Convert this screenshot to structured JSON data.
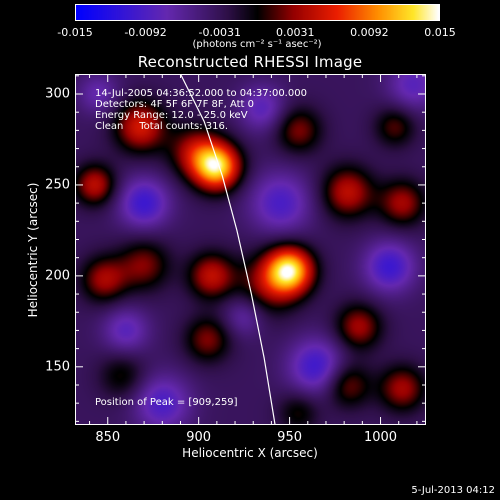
{
  "colorbar": {
    "ticks": [
      {
        "value": -0.015,
        "label": "-0.015"
      },
      {
        "value": -0.0092,
        "label": "-0.0092"
      },
      {
        "value": -0.0031,
        "label": "-0.0031"
      },
      {
        "value": 0.0031,
        "label": "0.0031"
      },
      {
        "value": 0.0092,
        "label": "0.0092"
      },
      {
        "value": 0.015,
        "label": "0.015"
      }
    ],
    "units": "(photons cm⁻² s⁻¹ asec⁻²)",
    "range": [
      -0.015,
      0.015
    ]
  },
  "chart_data": {
    "type": "heatmap",
    "title": "Reconstructed RHESSI Image",
    "xlabel": "Heliocentric X (arcsec)",
    "ylabel": "Heliocentric Y (arcsec)",
    "xlim": [
      832,
      1025
    ],
    "ylim": [
      118,
      311
    ],
    "xticks": [
      850,
      900,
      950,
      1000
    ],
    "yticks": [
      150,
      200,
      250,
      300
    ],
    "annotations": [
      "14-Jul-2005 04:36:52.000 to 04:37:00.000",
      "Detectors: 4F 5F 6F 7F 8F, Att 0",
      "Energy Range: 12.0 - 25.0 keV",
      "Clean     Total counts: 316."
    ],
    "peak_label": "Position of Peak = [909,259]",
    "peak": [
      909,
      259
    ],
    "value_range": [
      -0.015,
      0.015
    ],
    "sources": [
      {
        "x": 910,
        "y": 260,
        "amp": 0.016,
        "sigma": 9
      },
      {
        "x": 898,
        "y": 268,
        "amp": 0.007,
        "sigma": 10
      },
      {
        "x": 950,
        "y": 203,
        "amp": 0.016,
        "sigma": 9
      },
      {
        "x": 938,
        "y": 195,
        "amp": 0.006,
        "sigma": 12
      },
      {
        "x": 868,
        "y": 282,
        "amp": 0.009,
        "sigma": 10
      },
      {
        "x": 843,
        "y": 250,
        "amp": 0.008,
        "sigma": 8
      },
      {
        "x": 848,
        "y": 198,
        "amp": 0.007,
        "sigma": 9
      },
      {
        "x": 870,
        "y": 206,
        "amp": 0.006,
        "sigma": 10
      },
      {
        "x": 907,
        "y": 200,
        "amp": 0.008,
        "sigma": 9
      },
      {
        "x": 982,
        "y": 246,
        "amp": 0.008,
        "sigma": 10
      },
      {
        "x": 1012,
        "y": 240,
        "amp": 0.007,
        "sigma": 9
      },
      {
        "x": 1008,
        "y": 282,
        "amp": 0.005,
        "sigma": 8
      },
      {
        "x": 955,
        "y": 280,
        "amp": 0.006,
        "sigma": 9
      },
      {
        "x": 988,
        "y": 172,
        "amp": 0.007,
        "sigma": 9
      },
      {
        "x": 1012,
        "y": 138,
        "amp": 0.007,
        "sigma": 9
      },
      {
        "x": 982,
        "y": 140,
        "amp": 0.006,
        "sigma": 9
      },
      {
        "x": 905,
        "y": 165,
        "amp": 0.006,
        "sigma": 9
      },
      {
        "x": 858,
        "y": 145,
        "amp": 0.004,
        "sigma": 9
      },
      {
        "x": 955,
        "y": 125,
        "amp": 0.004,
        "sigma": 8
      },
      {
        "x": 870,
        "y": 240,
        "amp": -0.007,
        "sigma": 10
      },
      {
        "x": 945,
        "y": 240,
        "amp": -0.006,
        "sigma": 12
      },
      {
        "x": 1005,
        "y": 205,
        "amp": -0.007,
        "sigma": 10
      },
      {
        "x": 965,
        "y": 150,
        "amp": -0.007,
        "sigma": 11
      },
      {
        "x": 880,
        "y": 130,
        "amp": -0.006,
        "sigma": 11
      },
      {
        "x": 1018,
        "y": 305,
        "amp": -0.005,
        "sigma": 10
      },
      {
        "x": 935,
        "y": 292,
        "amp": -0.005,
        "sigma": 9
      },
      {
        "x": 845,
        "y": 300,
        "amp": -0.004,
        "sigma": 8
      },
      {
        "x": 860,
        "y": 170,
        "amp": -0.005,
        "sigma": 9
      },
      {
        "x": 925,
        "y": 178,
        "amp": -0.004,
        "sigma": 8
      }
    ],
    "limb": [
      [
        890,
        311
      ],
      [
        903,
        285
      ],
      [
        913,
        255
      ],
      [
        921,
        225
      ],
      [
        929,
        190
      ],
      [
        936,
        155
      ],
      [
        942,
        118
      ]
    ]
  },
  "footer": {
    "timestamp": "5-Jul-2013 04:12"
  }
}
